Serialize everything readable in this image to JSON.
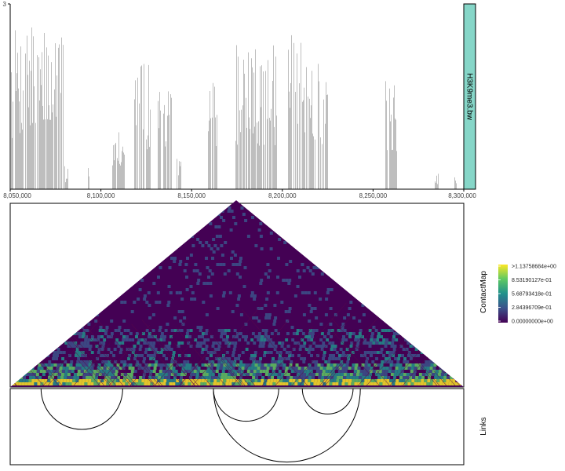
{
  "chart_data": [
    {
      "type": "bar",
      "track_label": "H3K9me3.bw",
      "ylim": [
        0,
        3
      ],
      "y_tick_labels": [
        "3"
      ],
      "xlim": [
        8050000,
        8300000
      ],
      "x_tick_labels": [
        "8,050,000",
        "8,100,000",
        "8,150,000",
        "8,200,000",
        "8,250,000",
        "8,300,000"
      ],
      "x_ticks": [
        8050000,
        8100000,
        8150000,
        8200000,
        8250000,
        8300000
      ],
      "bar_color": "#bebebe",
      "label_box_color": "#86d6c8",
      "signal_regions": [
        {
          "start": 8050000,
          "end": 8079000,
          "level": 2.1
        },
        {
          "start": 8080000,
          "end": 8082000,
          "level": 0.3
        },
        {
          "start": 8093000,
          "end": 8094500,
          "level": 0.4
        },
        {
          "start": 8106000,
          "end": 8113000,
          "level": 0.9
        },
        {
          "start": 8118000,
          "end": 8127000,
          "level": 1.7
        },
        {
          "start": 8131000,
          "end": 8139000,
          "level": 1.4
        },
        {
          "start": 8142000,
          "end": 8144000,
          "level": 0.4
        },
        {
          "start": 8159000,
          "end": 8164000,
          "level": 1.6
        },
        {
          "start": 8174000,
          "end": 8197000,
          "level": 1.9
        },
        {
          "start": 8203000,
          "end": 8220000,
          "level": 2.0
        },
        {
          "start": 8221000,
          "end": 8225000,
          "level": 1.6
        },
        {
          "start": 8257000,
          "end": 8263000,
          "level": 1.4
        },
        {
          "start": 8284000,
          "end": 8286000,
          "level": 0.2
        },
        {
          "start": 8295000,
          "end": 8296000,
          "level": 0.2
        }
      ]
    },
    {
      "type": "heatmap",
      "track_label": "ContactMap",
      "color_scale": [
        "#440154",
        "#3b528b",
        "#21918c",
        "#5ec962",
        "#fde725"
      ],
      "legend_values": [
        "0.00000000e+00",
        "2.84396709e-01",
        "5.68793418e-01",
        "8.53190127e-01",
        ">1.13758684e+00"
      ],
      "vmin": 0,
      "vmax": 1.13758684
    },
    {
      "type": "arcs",
      "track_label": "Links",
      "arcs": [
        {
          "start": 8067000,
          "end": 8112000,
          "direction": "down"
        },
        {
          "start": 8162000,
          "end": 8198000,
          "direction": "down"
        },
        {
          "start": 8211000,
          "end": 8239000,
          "direction": "down"
        },
        {
          "start": 8162000,
          "end": 8243000,
          "direction": "down"
        }
      ]
    }
  ]
}
